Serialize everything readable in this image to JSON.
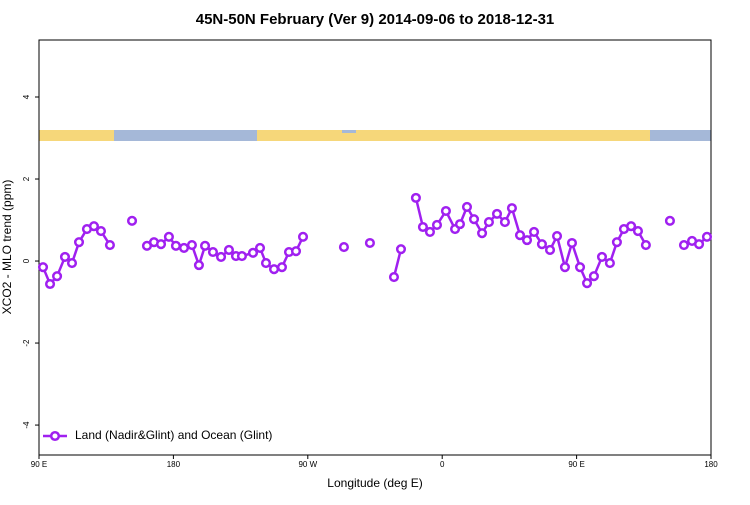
{
  "chart_data": {
    "type": "line",
    "title": "45N-50N February (Ver 9)   2014-09-06 to 2018-12-31",
    "x_label": "Longitude (deg E)",
    "y_label": "XCO2 - MLO trend (ppm)",
    "x": [
      92.7,
      97.4,
      102.1,
      107.4,
      112.1,
      116.8,
      122.1,
      126.8,
      131.5,
      137.5,
      140,
      152.3,
      155,
      162.3,
      167.0,
      171.7,
      177.0,
      181.7,
      187.1,
      192.4,
      197.1,
      201.2,
      206.5,
      211.9,
      217.2,
      221.9,
      225.9,
      233.3,
      238.0,
      242.0,
      247.4,
      252.7,
      257.4,
      262.1,
      266.8,
      270,
      294.2,
      300,
      311.6,
      315,
      327.7,
      332.4,
      335,
      342.4,
      347.1,
      351.8,
      356.5,
      362.5,
      368.6,
      371.9,
      376.6,
      381.3,
      386.7,
      391.3,
      396.7,
      402.0,
      406.7,
      412.1,
      416.8,
      421.5,
      426.8,
      432.2,
      436.9,
      442.2,
      446.9,
      452.3,
      457.0,
      461.6,
      467.0,
      472.3,
      477.0,
      481.7,
      486.5,
      491.1,
      496.4,
      500,
      512.5,
      515,
      521.9,
      527.3,
      532.0,
      537.3
    ],
    "series": [
      {
        "name": "Land (Nadir&Glint) and Ocean (Glint)",
        "color": "#a020f0",
        "values": [
          -0.15,
          -0.56,
          -0.37,
          0.1,
          -0.05,
          0.46,
          0.78,
          0.85,
          0.73,
          0.39,
          null,
          0.98,
          null,
          0.37,
          0.46,
          0.41,
          0.59,
          0.37,
          0.32,
          0.39,
          -0.1,
          0.37,
          0.22,
          0.1,
          0.27,
          0.12,
          0.12,
          0.2,
          0.32,
          -0.05,
          -0.2,
          -0.15,
          0.22,
          0.24,
          0.59,
          null,
          0.34,
          null,
          0.44,
          null,
          -0.39,
          0.29,
          null,
          1.54,
          0.83,
          0.71,
          0.88,
          1.22,
          0.78,
          0.9,
          1.32,
          1.02,
          0.68,
          0.95,
          1.15,
          0.95,
          1.29,
          0.63,
          0.51,
          0.71,
          0.41,
          0.27,
          0.61,
          -0.15,
          0.44,
          -0.15,
          -0.54,
          -0.37,
          0.1,
          -0.05,
          0.46,
          0.78,
          0.85,
          0.73,
          0.39,
          null,
          0.98,
          null,
          0.39,
          0.49,
          0.41,
          0.59
        ]
      }
    ],
    "xlim": [
      90,
      540
    ],
    "xticks": [
      {
        "value": 90,
        "label": "90 E"
      },
      {
        "value": 180,
        "label": "180"
      },
      {
        "value": 270,
        "label": "90 W"
      },
      {
        "value": 360,
        "label": "0"
      },
      {
        "value": 450,
        "label": "90 E"
      },
      {
        "value": 540,
        "label": "180"
      }
    ],
    "ylim": [
      -4.73,
      5.39
    ],
    "yticks": [
      -4,
      -2,
      0,
      2,
      4
    ],
    "legend": "bottomleft"
  }
}
